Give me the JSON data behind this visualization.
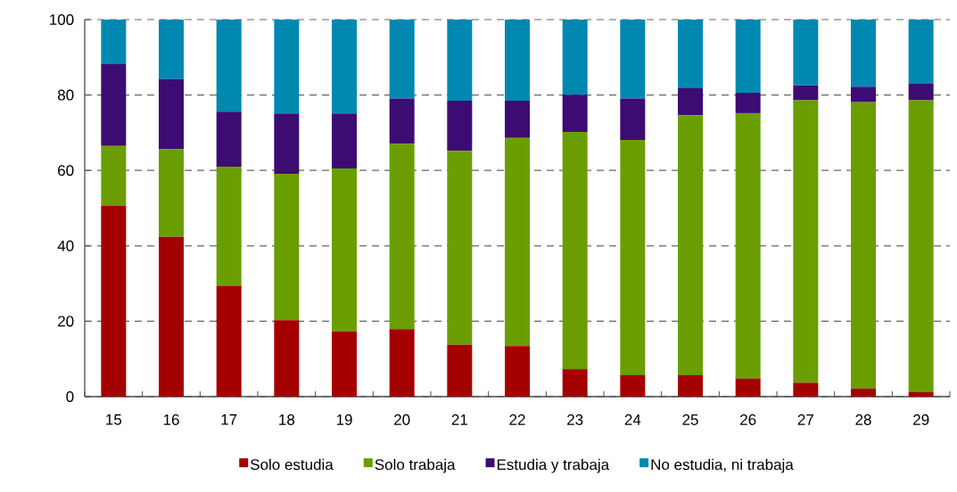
{
  "chart_data": {
    "type": "bar",
    "stacked": true,
    "categories": [
      "15",
      "16",
      "17",
      "18",
      "19",
      "20",
      "21",
      "22",
      "23",
      "24",
      "25",
      "26",
      "27",
      "28",
      "29"
    ],
    "series": [
      {
        "name": "Solo estudia",
        "color": "#a50000",
        "values": [
          50.6,
          42.4,
          29.3,
          20.3,
          17.3,
          17.9,
          13.8,
          13.4,
          7.3,
          5.7,
          5.7,
          4.8,
          3.7,
          2.1,
          1.2
        ]
      },
      {
        "name": "Solo trabaja",
        "color": "#6a9e00",
        "values": [
          15.9,
          23.2,
          31.7,
          38.8,
          43.2,
          49.2,
          51.4,
          55.2,
          62.9,
          62.4,
          68.9,
          70.4,
          74.9,
          76.0,
          77.4
        ]
      },
      {
        "name": "Estudia y trabaja",
        "color": "#3c0c72",
        "values": [
          21.7,
          18.6,
          14.6,
          16.0,
          14.6,
          12.0,
          13.3,
          9.9,
          9.9,
          11.0,
          7.2,
          5.4,
          4.0,
          4.1,
          4.5
        ]
      },
      {
        "name": "No estudia, ni trabaja",
        "color": "#0088b0",
        "values": [
          11.8,
          15.8,
          24.4,
          24.9,
          24.9,
          20.9,
          21.5,
          21.5,
          19.9,
          20.9,
          18.2,
          19.4,
          17.4,
          17.8,
          16.9
        ]
      }
    ],
    "ylim": [
      0,
      100
    ],
    "yticks": [
      0,
      20,
      40,
      60,
      80,
      100
    ],
    "grid": "y",
    "legend": "bottom"
  }
}
